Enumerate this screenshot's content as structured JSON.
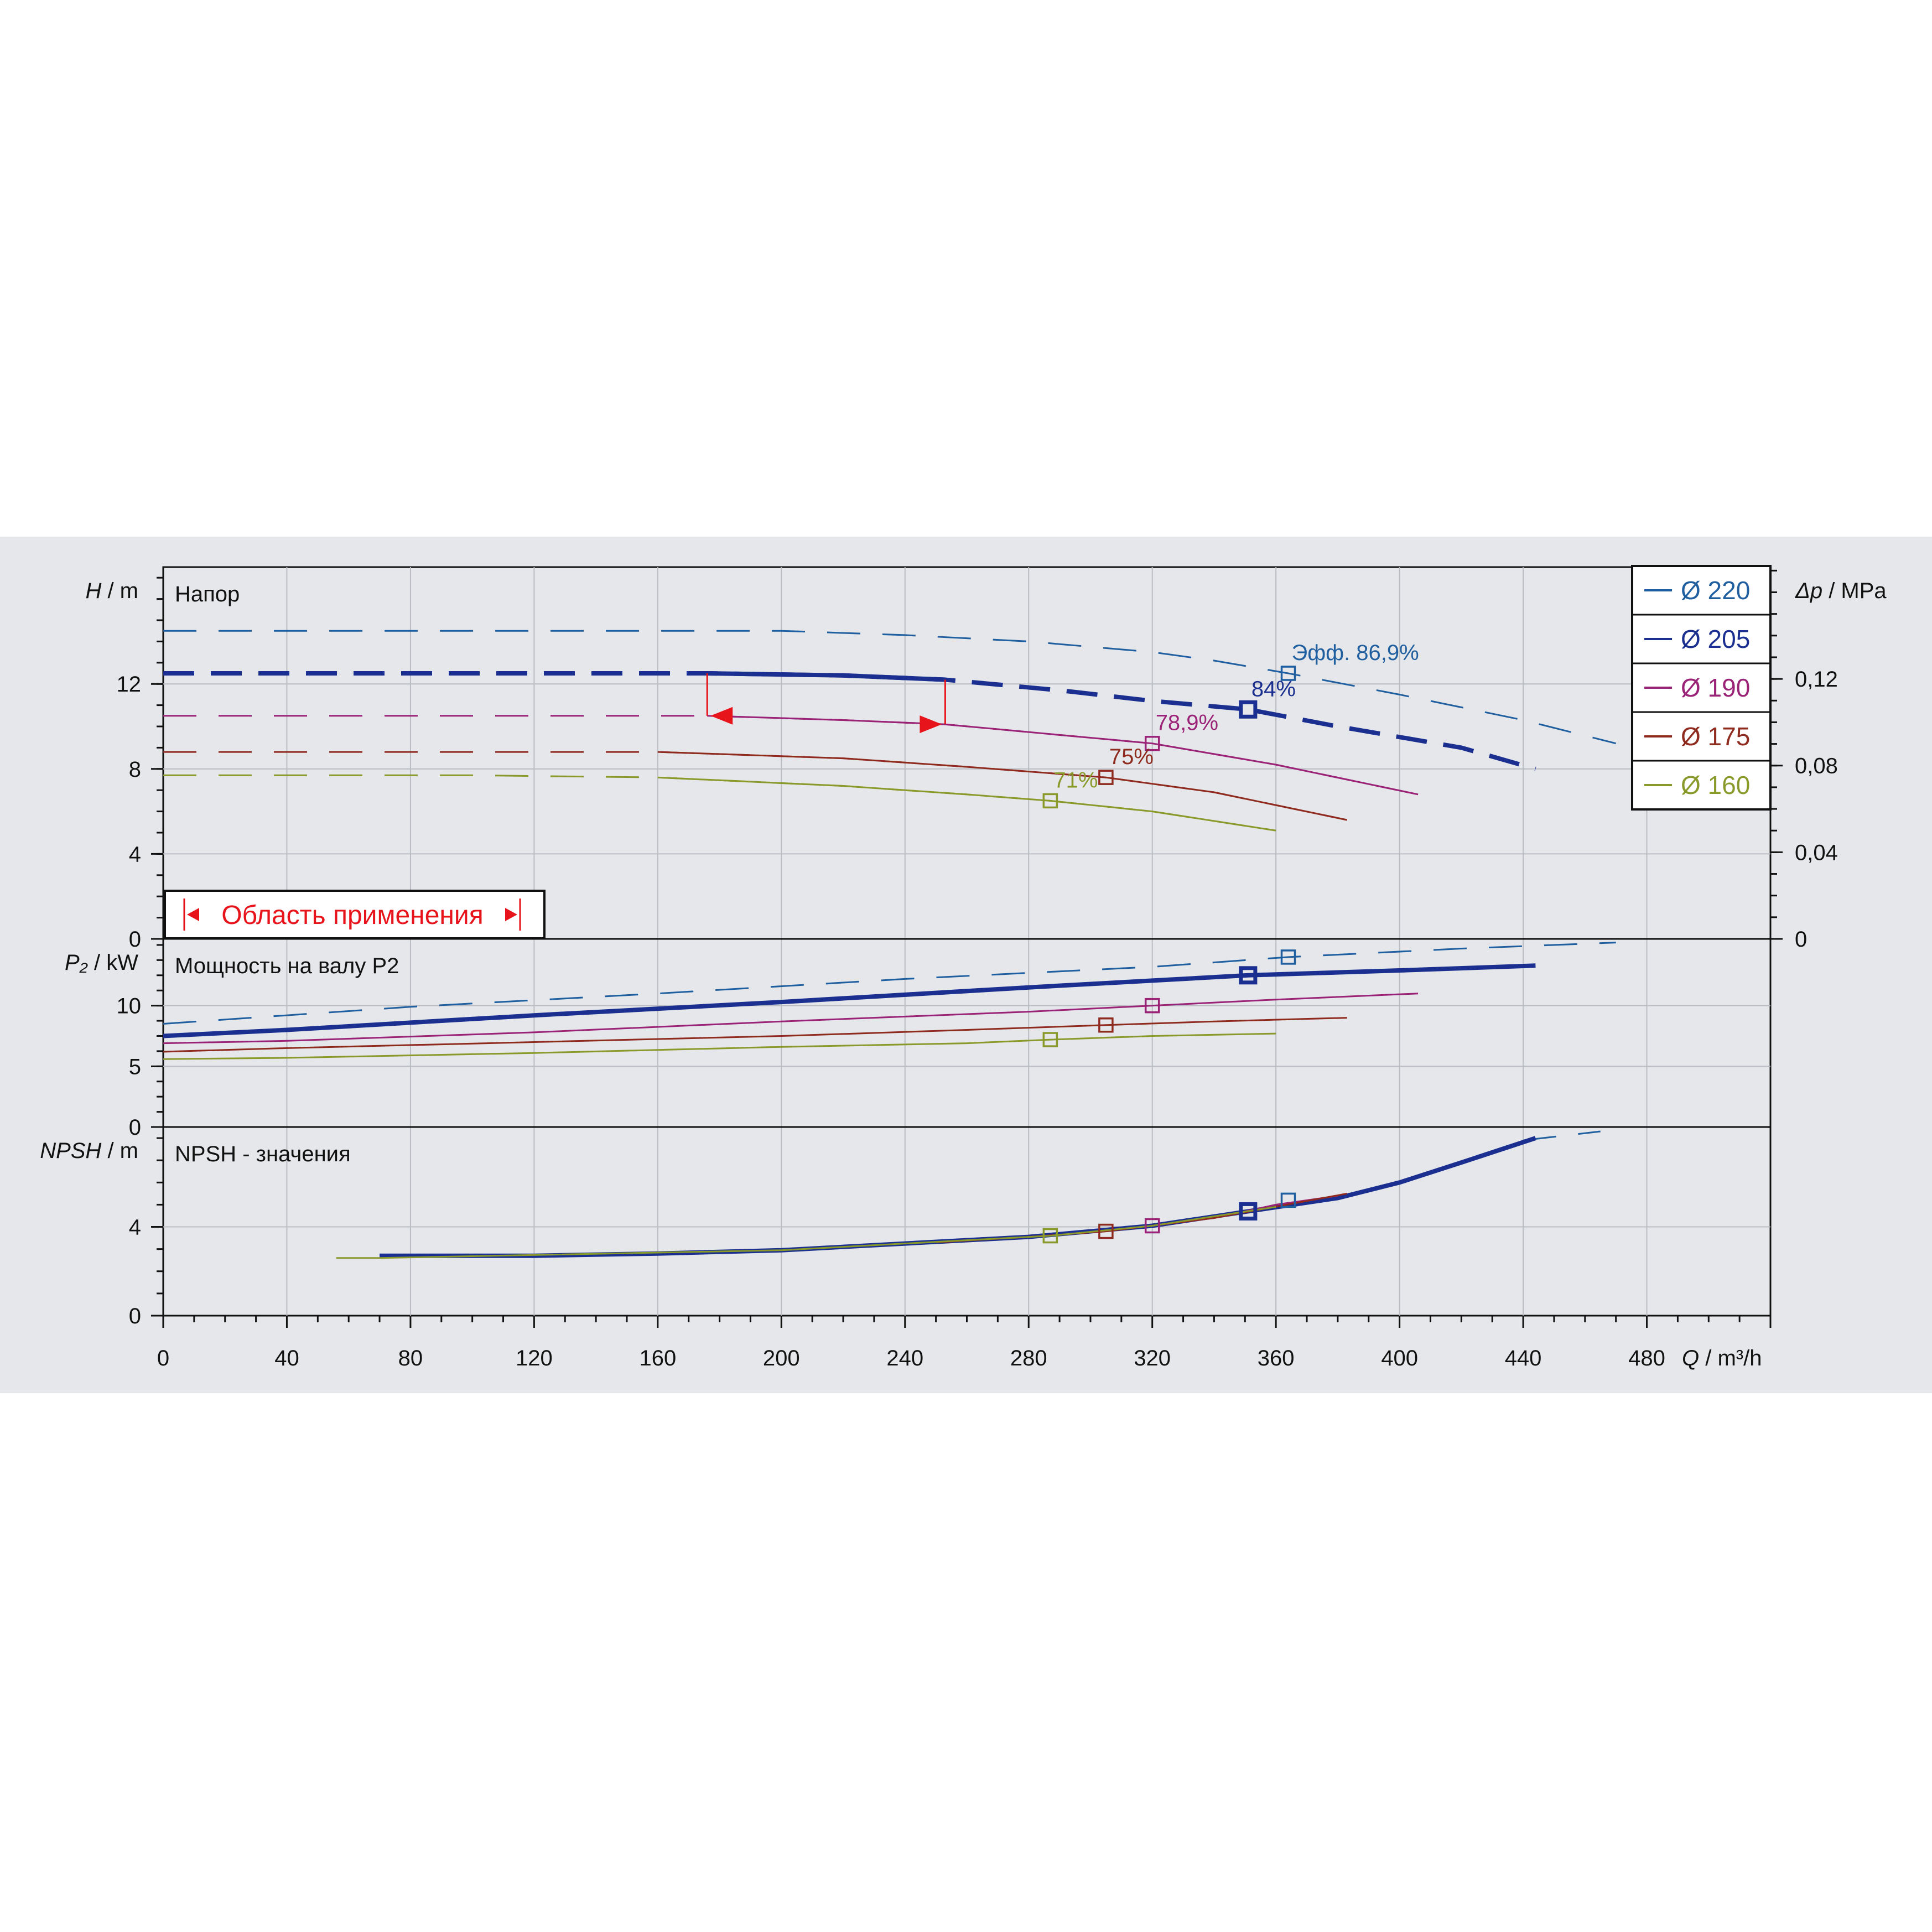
{
  "chart_data": {
    "type": "line",
    "x_axis": {
      "label_symbol": "Q",
      "label_unit": "/ m³/h",
      "range": [
        0,
        520
      ],
      "ticks": [
        0,
        40,
        80,
        120,
        160,
        200,
        240,
        280,
        320,
        360,
        400,
        440,
        480
      ],
      "tick_labels": [
        "0",
        "40",
        "80",
        "120",
        "160",
        "200",
        "240",
        "280",
        "320",
        "360",
        "400",
        "440",
        "480"
      ]
    },
    "grid": true,
    "legend": {
      "placement": "top-right",
      "entries": [
        {
          "label": "Ø 220",
          "color": "#1f5fa0"
        },
        {
          "label": "Ø 205",
          "color": "#1a2f8f"
        },
        {
          "label": "Ø 190",
          "color": "#9a2277"
        },
        {
          "label": "Ø 175",
          "color": "#8f2a1e"
        },
        {
          "label": "Ø 160",
          "color": "#8a9a2a"
        }
      ]
    },
    "operating_range": {
      "label": "Область применения",
      "q_min": 176,
      "q_max": 253,
      "color": "#e8141b"
    },
    "panels": [
      {
        "id": "head",
        "title": "Напор",
        "y_label_symbol": "H",
        "y_label_unit": "/ m",
        "ylim": [
          0,
          17.5
        ],
        "y_ticks": [
          0,
          4,
          8,
          12
        ],
        "y_tick_labels": [
          "0",
          "4",
          "8",
          "12"
        ],
        "secondary_axis": {
          "label_symbol": "Δp",
          "label_unit": "/ MPa",
          "ticks": [
            0,
            0.04,
            0.08,
            0.12
          ],
          "tick_labels": [
            "0",
            "0,04",
            "0,08",
            "0,12"
          ]
        },
        "series": [
          {
            "diameter": "Ø 220",
            "color": "#1f5fa0",
            "points": [
              [
                0,
                14.5
              ],
              [
                100,
                14.5
              ],
              [
                200,
                14.5
              ],
              [
                240,
                14.3
              ],
              [
                280,
                14.0
              ],
              [
                320,
                13.5
              ],
              [
                340,
                13.1
              ],
              [
                364,
                12.5
              ],
              [
                400,
                11.5
              ],
              [
                440,
                10.3
              ],
              [
                470,
                9.2
              ]
            ],
            "bep": {
              "q": 364,
              "value": 12.5,
              "label": "Эфф.  86,9%"
            }
          },
          {
            "diameter": "Ø 205",
            "color": "#1a2f8f",
            "points": [
              [
                0,
                12.5
              ],
              [
                100,
                12.5
              ],
              [
                176,
                12.5
              ],
              [
                220,
                12.4
              ],
              [
                253,
                12.2
              ],
              [
                290,
                11.7
              ],
              [
                320,
                11.2
              ],
              [
                351,
                10.8
              ],
              [
                380,
                10.0
              ],
              [
                420,
                9.0
              ],
              [
                444,
                8.0
              ]
            ],
            "bep": {
              "q": 351,
              "value": 10.8,
              "label": "84%"
            }
          },
          {
            "diameter": "Ø 190",
            "color": "#9a2277",
            "points": [
              [
                0,
                10.5
              ],
              [
                100,
                10.5
              ],
              [
                176,
                10.5
              ],
              [
                220,
                10.3
              ],
              [
                253,
                10.1
              ],
              [
                290,
                9.6
              ],
              [
                320,
                9.2
              ],
              [
                360,
                8.2
              ],
              [
                406,
                6.8
              ]
            ],
            "bep": {
              "q": 320,
              "value": 9.2,
              "label": "78,9%"
            }
          },
          {
            "diameter": "Ø 175",
            "color": "#8f2a1e",
            "points": [
              [
                0,
                8.8
              ],
              [
                100,
                8.8
              ],
              [
                160,
                8.8
              ],
              [
                220,
                8.5
              ],
              [
                260,
                8.1
              ],
              [
                305,
                7.6
              ],
              [
                340,
                6.9
              ],
              [
                383,
                5.6
              ]
            ],
            "bep": {
              "q": 305,
              "value": 7.6,
              "label": "75%"
            }
          },
          {
            "diameter": "Ø 160",
            "color": "#8a9a2a",
            "points": [
              [
                0,
                7.7
              ],
              [
                100,
                7.7
              ],
              [
                160,
                7.6
              ],
              [
                220,
                7.2
              ],
              [
                260,
                6.8
              ],
              [
                287,
                6.5
              ],
              [
                320,
                6.0
              ],
              [
                360,
                5.1
              ]
            ],
            "bep": {
              "q": 287,
              "value": 6.5,
              "label": "71%"
            }
          }
        ]
      },
      {
        "id": "power",
        "title": "Мощность на валу P2",
        "y_label_symbol": "P₂",
        "y_label_unit": "/ kW",
        "ylim": [
          0,
          15.5
        ],
        "y_ticks": [
          0,
          5,
          10
        ],
        "y_tick_labels": [
          "0",
          "5",
          "10"
        ],
        "series": [
          {
            "diameter": "Ø 220",
            "color": "#1f5fa0",
            "points": [
              [
                0,
                8.5
              ],
              [
                80,
                9.9
              ],
              [
                160,
                11.0
              ],
              [
                240,
                12.2
              ],
              [
                320,
                13.2
              ],
              [
                364,
                14.0
              ],
              [
                420,
                14.7
              ],
              [
                470,
                15.2
              ]
            ],
            "bep": {
              "q": 364,
              "value": 14.0
            }
          },
          {
            "diameter": "Ø 205",
            "color": "#1a2f8f",
            "points": [
              [
                0,
                7.5
              ],
              [
                40,
                8.0
              ],
              [
                120,
                9.2
              ],
              [
                200,
                10.3
              ],
              [
                280,
                11.5
              ],
              [
                351,
                12.5
              ],
              [
                400,
                12.9
              ],
              [
                444,
                13.3
              ]
            ],
            "bep": {
              "q": 351,
              "value": 12.5
            }
          },
          {
            "diameter": "Ø 190",
            "color": "#9a2277",
            "points": [
              [
                0,
                6.9
              ],
              [
                40,
                7.1
              ],
              [
                120,
                7.8
              ],
              [
                200,
                8.7
              ],
              [
                280,
                9.5
              ],
              [
                320,
                10.0
              ],
              [
                360,
                10.5
              ],
              [
                406,
                11.0
              ]
            ],
            "bep": {
              "q": 320,
              "value": 10.0
            }
          },
          {
            "diameter": "Ø 175",
            "color": "#8f2a1e",
            "points": [
              [
                0,
                6.2
              ],
              [
                40,
                6.5
              ],
              [
                120,
                7.0
              ],
              [
                200,
                7.5
              ],
              [
                260,
                8.0
              ],
              [
                305,
                8.4
              ],
              [
                340,
                8.7
              ],
              [
                383,
                9.0
              ]
            ],
            "bep": {
              "q": 305,
              "value": 8.4
            }
          },
          {
            "diameter": "Ø 160",
            "color": "#8a9a2a",
            "points": [
              [
                0,
                5.6
              ],
              [
                40,
                5.7
              ],
              [
                120,
                6.1
              ],
              [
                200,
                6.6
              ],
              [
                260,
                6.9
              ],
              [
                287,
                7.2
              ],
              [
                320,
                7.5
              ],
              [
                360,
                7.7
              ]
            ],
            "bep": {
              "q": 287,
              "value": 7.2
            }
          }
        ]
      },
      {
        "id": "npsh",
        "title": "NPSH - значения",
        "y_label_symbol": "NPSH",
        "y_label_unit": "/ m",
        "ylim": [
          0,
          8.5
        ],
        "y_ticks": [
          0,
          4
        ],
        "y_tick_labels": [
          "0",
          "4"
        ],
        "series": [
          {
            "diameter": "Ø 220",
            "color": "#1f5fa0",
            "points": [
              [
                440,
                7.9
              ],
              [
                465,
                8.3
              ]
            ],
            "bep": {
              "q": 364,
              "value": 5.2
            }
          },
          {
            "diameter": "Ø 205",
            "color": "#1a2f8f",
            "points": [
              [
                70,
                2.7
              ],
              [
                120,
                2.7
              ],
              [
                160,
                2.8
              ],
              [
                200,
                2.95
              ],
              [
                240,
                3.25
              ],
              [
                280,
                3.55
              ],
              [
                320,
                4.05
              ],
              [
                351,
                4.7
              ],
              [
                380,
                5.3
              ],
              [
                400,
                6.0
              ],
              [
                420,
                6.9
              ],
              [
                444,
                8.0
              ]
            ],
            "bep": {
              "q": 351,
              "value": 4.7
            }
          },
          {
            "diameter": "Ø 190",
            "color": "#9a2277",
            "points": [
              [
                320,
                4.05
              ],
              [
                340,
                4.4
              ],
              [
                360,
                5.0
              ],
              [
                380,
                5.4
              ]
            ],
            "bep": {
              "q": 320,
              "value": 4.05
            }
          },
          {
            "diameter": "Ø 175",
            "color": "#8f2a1e",
            "points": [
              [
                250,
                3.3
              ],
              [
                280,
                3.55
              ],
              [
                305,
                3.8
              ],
              [
                340,
                4.4
              ],
              [
                383,
                5.5
              ]
            ],
            "bep": {
              "q": 305,
              "value": 3.8
            }
          },
          {
            "diameter": "Ø 160",
            "color": "#8a9a2a",
            "points": [
              [
                56,
                2.6
              ],
              [
                70,
                2.6
              ],
              [
                200,
                2.95
              ],
              [
                260,
                3.4
              ],
              [
                287,
                3.6
              ],
              [
                320,
                4.05
              ],
              [
                360,
                4.9
              ]
            ],
            "bep": {
              "q": 287,
              "value": 3.6
            }
          }
        ]
      }
    ]
  }
}
